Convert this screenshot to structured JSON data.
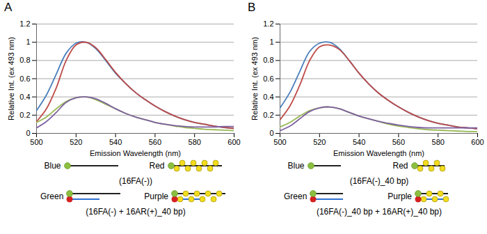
{
  "chart_data": [
    {
      "type": "line",
      "title": "A",
      "x_label": "Emission Wavelength (nm)",
      "y_label": "Relative Int. (ex 493 nm)",
      "x": [
        500,
        505,
        510,
        515,
        520,
        525,
        530,
        535,
        540,
        545,
        550,
        555,
        560,
        565,
        570,
        575,
        580,
        585,
        590,
        595,
        600
      ],
      "series": [
        {
          "name": "Blue",
          "color": "#4a7ebb",
          "values": [
            0.25,
            0.42,
            0.65,
            0.88,
            0.99,
            1.0,
            0.93,
            0.8,
            0.66,
            0.55,
            0.45,
            0.37,
            0.3,
            0.24,
            0.19,
            0.15,
            0.12,
            0.1,
            0.08,
            0.065,
            0.055
          ]
        },
        {
          "name": "Red",
          "color": "#be4b48",
          "values": [
            0.13,
            0.27,
            0.5,
            0.8,
            0.97,
            1.0,
            0.94,
            0.81,
            0.67,
            0.55,
            0.45,
            0.37,
            0.3,
            0.24,
            0.19,
            0.15,
            0.12,
            0.1,
            0.08,
            0.065,
            0.055
          ]
        },
        {
          "name": "Green",
          "color": "#98b954",
          "values": [
            0.12,
            0.18,
            0.27,
            0.35,
            0.39,
            0.4,
            0.37,
            0.32,
            0.27,
            0.22,
            0.18,
            0.15,
            0.12,
            0.1,
            0.08,
            0.065,
            0.055,
            0.045,
            0.04,
            0.035,
            0.03
          ]
        },
        {
          "name": "Purple",
          "color": "#7d60a0",
          "values": [
            0.06,
            0.13,
            0.23,
            0.34,
            0.39,
            0.4,
            0.38,
            0.33,
            0.27,
            0.22,
            0.18,
            0.15,
            0.12,
            0.1,
            0.085,
            0.075,
            0.07,
            0.07,
            0.07,
            0.075,
            0.075
          ]
        }
      ],
      "xlim": [
        500,
        600
      ],
      "xticks": [
        500,
        520,
        540,
        560,
        580,
        600
      ],
      "ylim": [
        0,
        1.2
      ],
      "yticks": [
        0,
        0.2,
        0.4,
        0.6,
        0.8,
        1,
        1.2
      ],
      "grid": true,
      "annotations": [
        "(16FA(-))",
        "(16FA(-) + 16AR(+)_40 bp)"
      ]
    },
    {
      "type": "line",
      "title": "B",
      "x_label": "Emission Wavelength (nm)",
      "y_label": "Relative Int. (ex 493 nm)",
      "x": [
        500,
        505,
        510,
        515,
        520,
        525,
        530,
        535,
        540,
        545,
        550,
        555,
        560,
        565,
        570,
        575,
        580,
        585,
        590,
        595,
        600
      ],
      "series": [
        {
          "name": "Blue",
          "color": "#4a7ebb",
          "values": [
            0.28,
            0.45,
            0.68,
            0.9,
            0.99,
            1.0,
            0.93,
            0.8,
            0.66,
            0.54,
            0.44,
            0.36,
            0.29,
            0.23,
            0.18,
            0.14,
            0.11,
            0.09,
            0.07,
            0.06,
            0.05
          ]
        },
        {
          "name": "Red",
          "color": "#be4b48",
          "values": [
            0.15,
            0.3,
            0.53,
            0.8,
            0.95,
            0.97,
            0.92,
            0.8,
            0.66,
            0.54,
            0.44,
            0.36,
            0.29,
            0.23,
            0.18,
            0.14,
            0.11,
            0.09,
            0.07,
            0.06,
            0.05
          ]
        },
        {
          "name": "Green",
          "color": "#98b954",
          "values": [
            0.07,
            0.12,
            0.19,
            0.25,
            0.28,
            0.29,
            0.27,
            0.23,
            0.19,
            0.16,
            0.13,
            0.1,
            0.08,
            0.065,
            0.05,
            0.04,
            0.035,
            0.03,
            0.025,
            0.02,
            0.02
          ]
        },
        {
          "name": "Purple",
          "color": "#7d60a0",
          "values": [
            0.03,
            0.08,
            0.16,
            0.24,
            0.28,
            0.29,
            0.27,
            0.23,
            0.19,
            0.16,
            0.13,
            0.11,
            0.09,
            0.075,
            0.065,
            0.06,
            0.06,
            0.06,
            0.06,
            0.06,
            0.06
          ]
        }
      ],
      "xlim": [
        500,
        600
      ],
      "xticks": [
        500,
        520,
        540,
        560,
        580,
        600
      ],
      "ylim": [
        0,
        1.2
      ],
      "yticks": [
        0,
        0.2,
        0.4,
        0.6,
        0.8,
        1,
        1.2
      ],
      "grid": true,
      "annotations": [
        "(16FA(-)_40 bp)",
        "(16FA(-)_40 bp + 16AR(+)_40 bp)"
      ]
    }
  ]
}
